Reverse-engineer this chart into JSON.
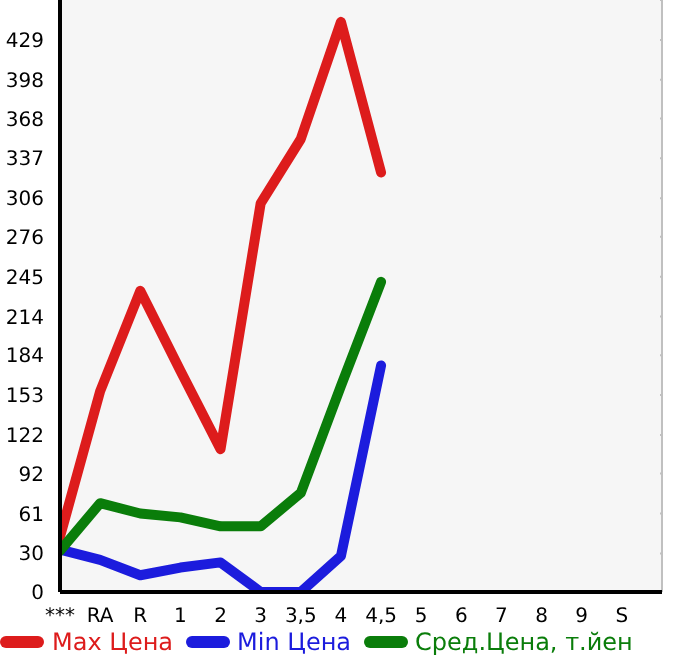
{
  "chart_data": {
    "type": "line",
    "categories": [
      "***",
      "RA",
      "R",
      "1",
      "2",
      "3",
      "3,5",
      "4",
      "4,5",
      "5",
      "6",
      "7",
      "8",
      "9",
      "S"
    ],
    "series": [
      {
        "name": "Max Цена",
        "color": "#dd1c1c",
        "values": [
          43,
          156,
          234,
          172,
          111,
          302,
          352,
          443,
          326,
          null,
          null,
          null,
          null,
          null,
          null
        ]
      },
      {
        "name": "Min Цена",
        "color": "#1c1cdd",
        "values": [
          33,
          25,
          13,
          19,
          23,
          0,
          0,
          28,
          176,
          null,
          null,
          null,
          null,
          null,
          null
        ]
      },
      {
        "name": "Сред.Цена, т.йен",
        "color": "#0a7d0a",
        "values": [
          32,
          69,
          61,
          58,
          51,
          51,
          77,
          160,
          241,
          null,
          null,
          null,
          null,
          null,
          null
        ]
      }
    ],
    "ylim": [
      0,
      460
    ],
    "yticks": [
      0,
      30,
      61,
      92,
      122,
      153,
      184,
      214,
      245,
      276,
      306,
      337,
      368,
      398,
      429
    ],
    "grid": true,
    "legend": "bottom",
    "marker": "none",
    "line_style": "solid"
  }
}
